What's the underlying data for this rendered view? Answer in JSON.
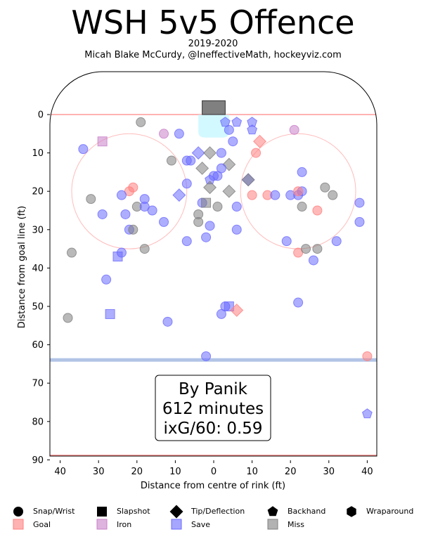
{
  "header": {
    "title": "WSH 5v5 Offence",
    "season": "2019-2020",
    "credit": "Micah Blake McCurdy, @IneffectiveMath, hockeyviz.com"
  },
  "colors": {
    "goal": "#ff7f7f",
    "iron": "#c880c8",
    "save": "#6b6bff",
    "miss": "#7f7f7f",
    "blue_line": "#9fb5e0",
    "goal_line": "#ff9999",
    "crease": "#bff7ff"
  },
  "legend": {
    "shapes": [
      {
        "label": "Snap/Wrist",
        "shape": "circle"
      },
      {
        "label": "Slapshot",
        "shape": "square"
      },
      {
        "label": "Tip/Deflection",
        "shape": "diamond"
      },
      {
        "label": "Backhand",
        "shape": "pentagon"
      },
      {
        "label": "Wraparound",
        "shape": "hexagon"
      }
    ],
    "results": [
      {
        "label": "Goal",
        "color_key": "goal"
      },
      {
        "label": "Iron",
        "color_key": "iron"
      },
      {
        "label": "Save",
        "color_key": "save"
      },
      {
        "label": "Miss",
        "color_key": "miss"
      }
    ]
  },
  "annotation": {
    "line1": "By Panik",
    "line2": "612 minutes",
    "line3": "ixG/60: 0.59"
  },
  "chart_data": {
    "type": "scatter",
    "title": "WSH 5v5 Offence",
    "xlabel": "Distance from centre of rink (ft)",
    "ylabel": "Distance from goal line (ft)",
    "xlim": [
      42.5,
      -42.5
    ],
    "ylim": [
      90,
      -11
    ],
    "xticks": [
      40,
      30,
      20,
      10,
      0,
      -10,
      -20,
      -30,
      -40
    ],
    "xtick_labels": [
      "40",
      "30",
      "20",
      "10",
      "0",
      "10",
      "20",
      "30",
      "40"
    ],
    "yticks": [
      0,
      10,
      20,
      30,
      40,
      50,
      60,
      70,
      80,
      90
    ],
    "ytick_labels": [
      "0",
      "10",
      "20",
      "30",
      "40",
      "50",
      "60",
      "70",
      "80",
      "90"
    ],
    "grid": false,
    "legend_position": "bottom",
    "points": [
      {
        "x": 19,
        "y": 2,
        "shape": "circle",
        "result": "miss"
      },
      {
        "x": 13,
        "y": 5,
        "shape": "circle",
        "result": "iron"
      },
      {
        "x": 9,
        "y": 5,
        "shape": "circle",
        "result": "save"
      },
      {
        "x": -21,
        "y": 4,
        "shape": "circle",
        "result": "iron"
      },
      {
        "x": 34,
        "y": 9,
        "shape": "circle",
        "result": "save"
      },
      {
        "x": 29,
        "y": 7,
        "shape": "square",
        "result": "iron"
      },
      {
        "x": 11,
        "y": 12,
        "shape": "circle",
        "result": "miss"
      },
      {
        "x": 7,
        "y": 12,
        "shape": "circle",
        "result": "save"
      },
      {
        "x": 6,
        "y": 12,
        "shape": "circle",
        "result": "save"
      },
      {
        "x": 4,
        "y": 10,
        "shape": "diamond",
        "result": "save"
      },
      {
        "x": 1,
        "y": 10,
        "shape": "diamond",
        "result": "miss"
      },
      {
        "x": -2,
        "y": 10,
        "shape": "circle",
        "result": "save"
      },
      {
        "x": -5,
        "y": 7,
        "shape": "circle",
        "result": "save"
      },
      {
        "x": -4,
        "y": 4,
        "shape": "circle",
        "result": "save"
      },
      {
        "x": -3,
        "y": 2,
        "shape": "pentagon",
        "result": "save"
      },
      {
        "x": -6,
        "y": 2,
        "shape": "pentagon",
        "result": "save"
      },
      {
        "x": -10,
        "y": 2,
        "shape": "pentagon",
        "result": "save"
      },
      {
        "x": -10,
        "y": 4,
        "shape": "pentagon",
        "result": "save"
      },
      {
        "x": -12,
        "y": 7,
        "shape": "diamond",
        "result": "goal"
      },
      {
        "x": -11,
        "y": 10,
        "shape": "circle",
        "result": "goal"
      },
      {
        "x": 3,
        "y": 14,
        "shape": "diamond",
        "result": "miss"
      },
      {
        "x": -4,
        "y": 13,
        "shape": "diamond",
        "result": "miss"
      },
      {
        "x": -2,
        "y": 14,
        "shape": "circle",
        "result": "save"
      },
      {
        "x": 0,
        "y": 16,
        "shape": "circle",
        "result": "save"
      },
      {
        "x": -1,
        "y": 16,
        "shape": "circle",
        "result": "save"
      },
      {
        "x": 1,
        "y": 17,
        "shape": "pentagon",
        "result": "save"
      },
      {
        "x": 1,
        "y": 19,
        "shape": "diamond",
        "result": "miss"
      },
      {
        "x": -9,
        "y": 17,
        "shape": "diamond",
        "result": "save"
      },
      {
        "x": -9,
        "y": 17,
        "shape": "diamond",
        "result": "miss"
      },
      {
        "x": -4,
        "y": 20,
        "shape": "diamond",
        "result": "miss"
      },
      {
        "x": -10,
        "y": 21,
        "shape": "circle",
        "result": "goal"
      },
      {
        "x": -14,
        "y": 21,
        "shape": "circle",
        "result": "goal"
      },
      {
        "x": -16,
        "y": 21,
        "shape": "circle",
        "result": "save"
      },
      {
        "x": -20,
        "y": 21,
        "shape": "circle",
        "result": "save"
      },
      {
        "x": -22,
        "y": 21,
        "shape": "circle",
        "result": "save"
      },
      {
        "x": -23,
        "y": 20,
        "shape": "circle",
        "result": "save"
      },
      {
        "x": -22,
        "y": 20,
        "shape": "circle",
        "result": "goal"
      },
      {
        "x": -23,
        "y": 15,
        "shape": "circle",
        "result": "save"
      },
      {
        "x": -29,
        "y": 19,
        "shape": "circle",
        "result": "miss"
      },
      {
        "x": -31,
        "y": 21,
        "shape": "circle",
        "result": "miss"
      },
      {
        "x": -38,
        "y": 23,
        "shape": "circle",
        "result": "save"
      },
      {
        "x": -38,
        "y": 28,
        "shape": "circle",
        "result": "save"
      },
      {
        "x": -23,
        "y": 24,
        "shape": "circle",
        "result": "miss"
      },
      {
        "x": -27,
        "y": 25,
        "shape": "circle",
        "result": "goal"
      },
      {
        "x": -32,
        "y": 33,
        "shape": "circle",
        "result": "save"
      },
      {
        "x": 9,
        "y": 21,
        "shape": "diamond",
        "result": "save"
      },
      {
        "x": 7,
        "y": 18,
        "shape": "circle",
        "result": "save"
      },
      {
        "x": 21,
        "y": 19,
        "shape": "circle",
        "result": "goal"
      },
      {
        "x": 22,
        "y": 20,
        "shape": "circle",
        "result": "goal"
      },
      {
        "x": 24,
        "y": 21,
        "shape": "circle",
        "result": "save"
      },
      {
        "x": 32,
        "y": 22,
        "shape": "circle",
        "result": "miss"
      },
      {
        "x": 20,
        "y": 24,
        "shape": "circle",
        "result": "miss"
      },
      {
        "x": 18,
        "y": 22,
        "shape": "circle",
        "result": "save"
      },
      {
        "x": 18,
        "y": 24,
        "shape": "circle",
        "result": "save"
      },
      {
        "x": 16,
        "y": 25,
        "shape": "circle",
        "result": "save"
      },
      {
        "x": 23,
        "y": 26,
        "shape": "circle",
        "result": "save"
      },
      {
        "x": 29,
        "y": 26,
        "shape": "circle",
        "result": "save"
      },
      {
        "x": 13,
        "y": 28,
        "shape": "circle",
        "result": "save"
      },
      {
        "x": 22,
        "y": 30,
        "shape": "circle",
        "result": "save"
      },
      {
        "x": 21,
        "y": 30,
        "shape": "circle",
        "result": "miss"
      },
      {
        "x": 18,
        "y": 35,
        "shape": "circle",
        "result": "miss"
      },
      {
        "x": 24,
        "y": 36,
        "shape": "circle",
        "result": "save"
      },
      {
        "x": 25,
        "y": 37,
        "shape": "square",
        "result": "save"
      },
      {
        "x": 37,
        "y": 36,
        "shape": "circle",
        "result": "miss"
      },
      {
        "x": 28,
        "y": 43,
        "shape": "circle",
        "result": "save"
      },
      {
        "x": 7,
        "y": 33,
        "shape": "circle",
        "result": "save"
      },
      {
        "x": 4,
        "y": 26,
        "shape": "circle",
        "result": "miss"
      },
      {
        "x": 4,
        "y": 28,
        "shape": "circle",
        "result": "miss"
      },
      {
        "x": 3,
        "y": 23,
        "shape": "circle",
        "result": "save"
      },
      {
        "x": 2,
        "y": 23,
        "shape": "square",
        "result": "miss"
      },
      {
        "x": 1,
        "y": 29,
        "shape": "circle",
        "result": "save"
      },
      {
        "x": 2,
        "y": 32,
        "shape": "circle",
        "result": "save"
      },
      {
        "x": -1,
        "y": 24,
        "shape": "circle",
        "result": "miss"
      },
      {
        "x": -6,
        "y": 24,
        "shape": "circle",
        "result": "save"
      },
      {
        "x": -6,
        "y": 30,
        "shape": "circle",
        "result": "save"
      },
      {
        "x": -19,
        "y": 33,
        "shape": "circle",
        "result": "save"
      },
      {
        "x": -22,
        "y": 36,
        "shape": "circle",
        "result": "goal"
      },
      {
        "x": -24,
        "y": 35,
        "shape": "circle",
        "result": "miss"
      },
      {
        "x": -27,
        "y": 35,
        "shape": "circle",
        "result": "miss"
      },
      {
        "x": -26,
        "y": 38,
        "shape": "circle",
        "result": "save"
      },
      {
        "x": 38,
        "y": 53,
        "shape": "circle",
        "result": "miss"
      },
      {
        "x": 27,
        "y": 52,
        "shape": "square",
        "result": "save"
      },
      {
        "x": 12,
        "y": 54,
        "shape": "circle",
        "result": "save"
      },
      {
        "x": -3,
        "y": 50,
        "shape": "circle",
        "result": "save"
      },
      {
        "x": -4,
        "y": 50,
        "shape": "square",
        "result": "save"
      },
      {
        "x": -6,
        "y": 51,
        "shape": "diamond",
        "result": "goal"
      },
      {
        "x": -2,
        "y": 52,
        "shape": "circle",
        "result": "save"
      },
      {
        "x": -22,
        "y": 49,
        "shape": "circle",
        "result": "save"
      },
      {
        "x": 2,
        "y": 63,
        "shape": "circle",
        "result": "save"
      },
      {
        "x": -40,
        "y": 63,
        "shape": "circle",
        "result": "goal"
      },
      {
        "x": -40,
        "y": 78,
        "shape": "pentagon",
        "result": "save"
      }
    ]
  }
}
